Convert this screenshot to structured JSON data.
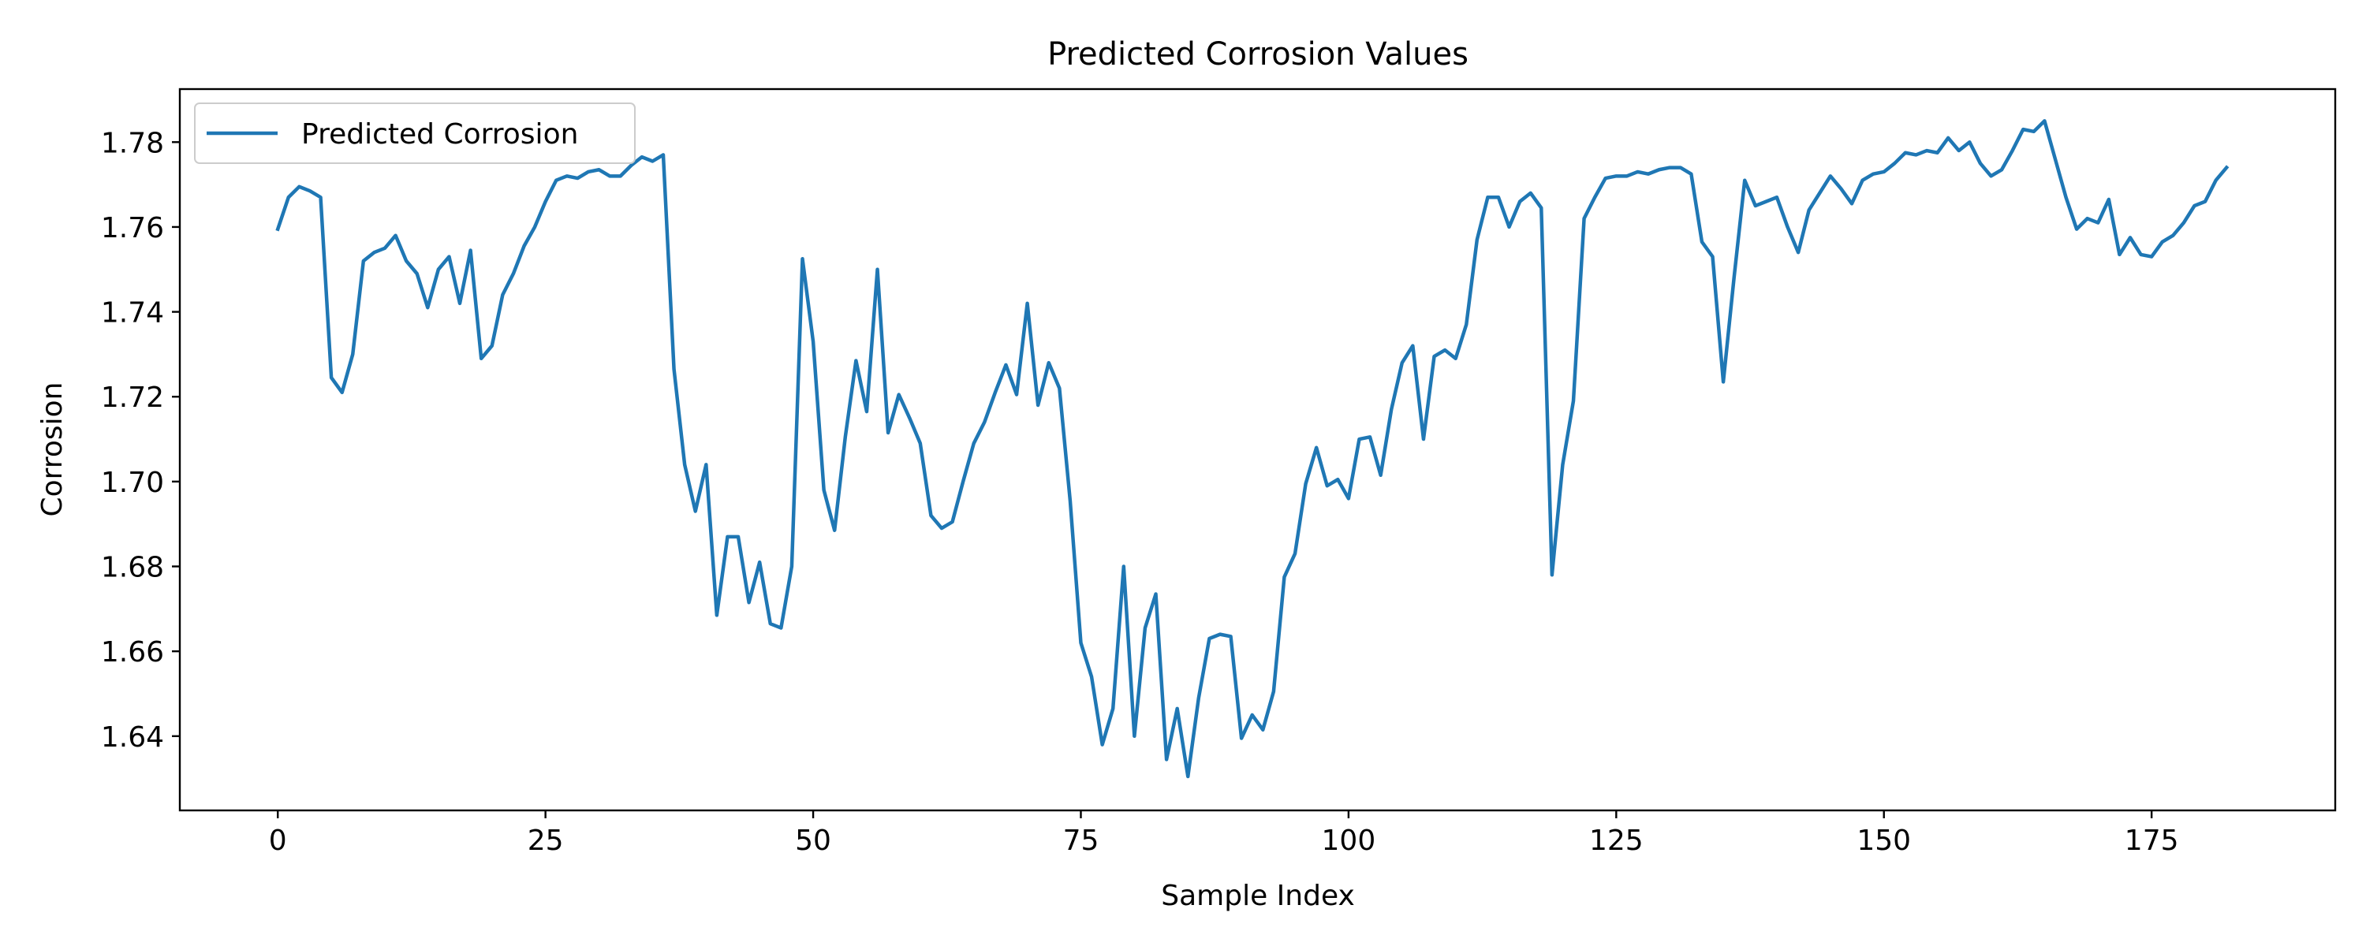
{
  "figure": {
    "title": "Predicted Corrosion Values"
  },
  "chart_data": {
    "type": "line",
    "title": "Predicted Corrosion Values",
    "xlabel": "Sample Index",
    "ylabel": "Corrosion",
    "xlim": [
      -9.15,
      192.15
    ],
    "ylim": [
      1.6225,
      1.7925
    ],
    "xticks": [
      0,
      25,
      50,
      75,
      100,
      125,
      150,
      175
    ],
    "xtick_labels": [
      "0",
      "25",
      "50",
      "75",
      "100",
      "125",
      "150",
      "175"
    ],
    "yticks": [
      1.64,
      1.66,
      1.68,
      1.7,
      1.72,
      1.74,
      1.76,
      1.78
    ],
    "ytick_labels": [
      "1.64",
      "1.66",
      "1.68",
      "1.70",
      "1.72",
      "1.74",
      "1.76",
      "1.78"
    ],
    "grid": false,
    "legend": {
      "position": "top-left",
      "entries": [
        "Predicted Corrosion"
      ]
    },
    "series": [
      {
        "name": "Predicted Corrosion",
        "color": "#1f77b4",
        "x_start": 0,
        "x_step": 1,
        "values": [
          1.7595,
          1.767,
          1.7695,
          1.7685,
          1.767,
          1.7245,
          1.721,
          1.73,
          1.752,
          1.754,
          1.755,
          1.758,
          1.752,
          1.749,
          1.741,
          1.75,
          1.753,
          1.742,
          1.7545,
          1.729,
          1.732,
          1.744,
          1.749,
          1.7555,
          1.76,
          1.766,
          1.771,
          1.772,
          1.7715,
          1.773,
          1.7735,
          1.772,
          1.772,
          1.7745,
          1.7765,
          1.7755,
          1.777,
          1.7265,
          1.704,
          1.693,
          1.704,
          1.6685,
          1.687,
          1.687,
          1.6715,
          1.681,
          1.6665,
          1.6655,
          1.68,
          1.7525,
          1.733,
          1.698,
          1.6885,
          1.7105,
          1.7285,
          1.7165,
          1.75,
          1.7115,
          1.7205,
          1.715,
          1.709,
          1.692,
          1.689,
          1.6905,
          1.7,
          1.709,
          1.714,
          1.721,
          1.7275,
          1.7205,
          1.742,
          1.718,
          1.728,
          1.722,
          1.6955,
          1.662,
          1.654,
          1.638,
          1.6465,
          1.68,
          1.64,
          1.6655,
          1.6735,
          1.6345,
          1.6465,
          1.6305,
          1.649,
          1.663,
          1.664,
          1.6635,
          1.6395,
          1.645,
          1.6415,
          1.6505,
          1.6775,
          1.683,
          1.6995,
          1.708,
          1.699,
          1.7005,
          1.696,
          1.71,
          1.7105,
          1.7015,
          1.717,
          1.728,
          1.732,
          1.71,
          1.7295,
          1.731,
          1.729,
          1.737,
          1.757,
          1.767,
          1.767,
          1.76,
          1.766,
          1.768,
          1.7645,
          1.678,
          1.704,
          1.719,
          1.762,
          1.767,
          1.7715,
          1.772,
          1.772,
          1.773,
          1.7725,
          1.7735,
          1.774,
          1.774,
          1.7725,
          1.7565,
          1.753,
          1.7235,
          1.748,
          1.771,
          1.765,
          1.766,
          1.767,
          1.76,
          1.754,
          1.764,
          1.768,
          1.772,
          1.769,
          1.7655,
          1.771,
          1.7725,
          1.773,
          1.775,
          1.7775,
          1.777,
          1.778,
          1.7775,
          1.781,
          1.778,
          1.78,
          1.775,
          1.772,
          1.7735,
          1.778,
          1.783,
          1.7825,
          1.785,
          1.776,
          1.767,
          1.7595,
          1.762,
          1.761,
          1.7665,
          1.7535,
          1.7575,
          1.7535,
          1.753,
          1.7565,
          1.758,
          1.761,
          1.765,
          1.766,
          1.771,
          1.774
        ]
      }
    ]
  }
}
